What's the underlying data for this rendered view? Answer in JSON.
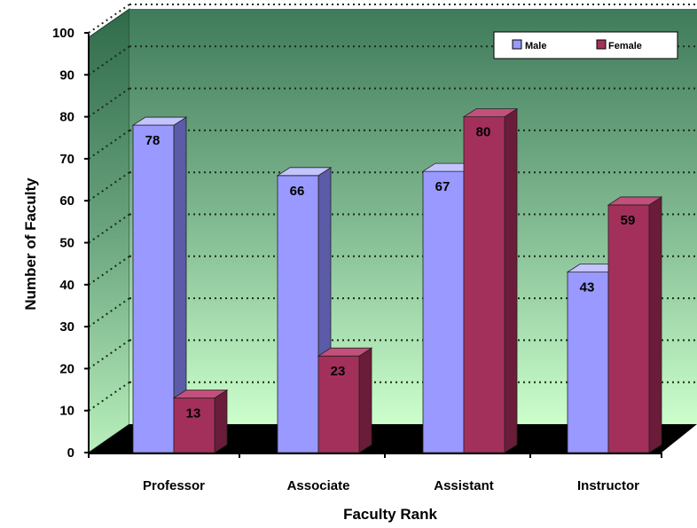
{
  "chart_data": {
    "type": "bar",
    "categories": [
      "Professor",
      "Associate",
      "Assistant",
      "Instructor"
    ],
    "series": [
      {
        "name": "Male",
        "values": [
          78,
          66,
          67,
          43
        ]
      },
      {
        "name": "Female",
        "values": [
          13,
          23,
          80,
          59
        ]
      }
    ],
    "xlabel": "Faculty Rank",
    "ylabel": "Number of Faculty",
    "ylim": [
      0,
      100
    ],
    "yticks": [
      0,
      10,
      20,
      30,
      40,
      50,
      60,
      70,
      80,
      90,
      100
    ],
    "grid": true,
    "legend_position": "top-right",
    "colors": {
      "male_front": "#9999ff",
      "male_side": "#5b5ba8",
      "male_top": "#c4c4ff",
      "female_front": "#a3305a",
      "female_side": "#6a1c39",
      "female_top": "#c2507a",
      "background_top": "#3f7a5a",
      "background_bottom": "#ccffcc",
      "floor": "#000000"
    }
  }
}
